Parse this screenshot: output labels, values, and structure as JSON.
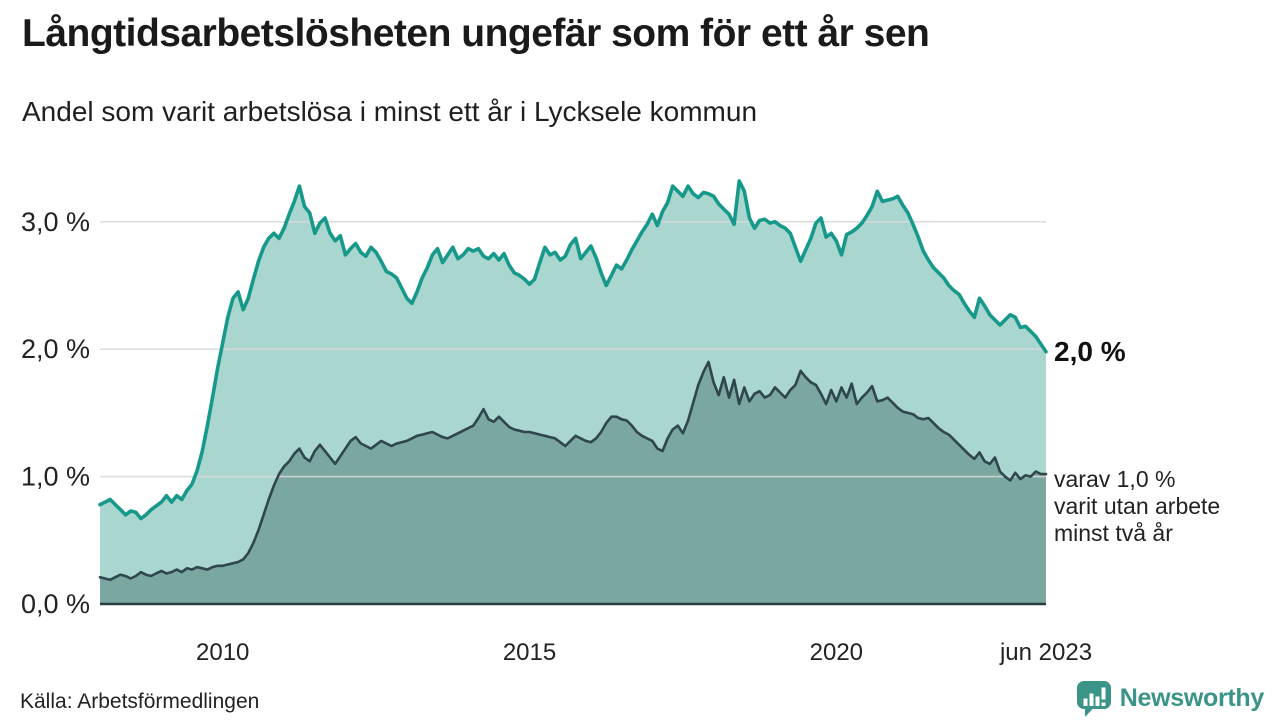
{
  "chart_data": {
    "type": "area",
    "title": "Långtidsarbetslösheten ungefär som för ett år sen",
    "subtitle": "Andel som varit arbetslösa i minst ett år i Lycksele kommun",
    "x_start": "2008-01",
    "x_end": "2023-06",
    "frequency": "monthly",
    "x_tick_labels": [
      "2010",
      "2015",
      "2020",
      "jun 2023"
    ],
    "x_tick_months": [
      24,
      84,
      144,
      185
    ],
    "y_tick_labels": [
      "0,0 %",
      "1,0 %",
      "2,0 %",
      "3,0 %"
    ],
    "y_tick_values": [
      0,
      1,
      2,
      3
    ],
    "ylim": [
      0,
      3.45
    ],
    "grid": "horizontal",
    "legend_position": "right-end-of-line",
    "series": [
      {
        "name": "Andel som varit arbetslösa minst ett år",
        "line_color": "#16998b",
        "fill_color": "#a9d6cf",
        "end_value_label": "2,0 %",
        "values": [
          0.78,
          0.8,
          0.82,
          0.78,
          0.74,
          0.7,
          0.73,
          0.72,
          0.67,
          0.7,
          0.74,
          0.77,
          0.8,
          0.85,
          0.8,
          0.85,
          0.82,
          0.89,
          0.94,
          1.05,
          1.2,
          1.4,
          1.62,
          1.85,
          2.05,
          2.25,
          2.4,
          2.45,
          2.31,
          2.4,
          2.55,
          2.69,
          2.8,
          2.87,
          2.91,
          2.87,
          2.95,
          3.06,
          3.16,
          3.28,
          3.12,
          3.07,
          2.91,
          2.99,
          3.03,
          2.91,
          2.85,
          2.89,
          2.74,
          2.79,
          2.83,
          2.76,
          2.73,
          2.8,
          2.76,
          2.69,
          2.61,
          2.59,
          2.56,
          2.48,
          2.4,
          2.36,
          2.45,
          2.56,
          2.64,
          2.74,
          2.79,
          2.68,
          2.74,
          2.8,
          2.71,
          2.74,
          2.79,
          2.77,
          2.79,
          2.73,
          2.71,
          2.75,
          2.7,
          2.75,
          2.66,
          2.6,
          2.58,
          2.55,
          2.51,
          2.55,
          2.68,
          2.8,
          2.74,
          2.76,
          2.7,
          2.73,
          2.82,
          2.87,
          2.71,
          2.76,
          2.81,
          2.72,
          2.6,
          2.5,
          2.58,
          2.66,
          2.63,
          2.7,
          2.78,
          2.85,
          2.92,
          2.98,
          3.06,
          2.97,
          3.08,
          3.15,
          3.28,
          3.24,
          3.2,
          3.28,
          3.22,
          3.19,
          3.23,
          3.22,
          3.2,
          3.14,
          3.1,
          3.06,
          2.98,
          3.32,
          3.24,
          3.03,
          2.95,
          3.01,
          3.02,
          2.99,
          3.0,
          2.97,
          2.95,
          2.91,
          2.8,
          2.69,
          2.78,
          2.87,
          2.99,
          3.03,
          2.88,
          2.91,
          2.85,
          2.74,
          2.9,
          2.92,
          2.95,
          2.99,
          3.05,
          3.12,
          3.24,
          3.16,
          3.17,
          3.18,
          3.2,
          3.13,
          3.07,
          2.98,
          2.88,
          2.77,
          2.7,
          2.64,
          2.6,
          2.56,
          2.5,
          2.46,
          2.43,
          2.36,
          2.3,
          2.25,
          2.4,
          2.34,
          2.27,
          2.23,
          2.19,
          2.23,
          2.27,
          2.25,
          2.17,
          2.18,
          2.14,
          2.1,
          2.04,
          1.98
        ]
      },
      {
        "name": "varav utan arbete minst två år",
        "line_color": "#2e464c",
        "fill_color": "#7aa7a0",
        "end_value_label": "varav 1,0 % varit utan arbete minst två år",
        "values": [
          0.21,
          0.2,
          0.19,
          0.21,
          0.23,
          0.22,
          0.2,
          0.22,
          0.25,
          0.23,
          0.22,
          0.24,
          0.26,
          0.24,
          0.25,
          0.27,
          0.25,
          0.28,
          0.27,
          0.29,
          0.28,
          0.27,
          0.29,
          0.3,
          0.3,
          0.31,
          0.32,
          0.33,
          0.35,
          0.4,
          0.48,
          0.58,
          0.7,
          0.82,
          0.93,
          1.02,
          1.08,
          1.12,
          1.18,
          1.22,
          1.15,
          1.12,
          1.2,
          1.25,
          1.2,
          1.15,
          1.1,
          1.16,
          1.22,
          1.28,
          1.31,
          1.26,
          1.24,
          1.22,
          1.25,
          1.28,
          1.26,
          1.24,
          1.26,
          1.27,
          1.28,
          1.3,
          1.32,
          1.33,
          1.34,
          1.35,
          1.33,
          1.31,
          1.3,
          1.32,
          1.34,
          1.36,
          1.38,
          1.4,
          1.46,
          1.53,
          1.45,
          1.43,
          1.47,
          1.43,
          1.39,
          1.37,
          1.36,
          1.35,
          1.35,
          1.34,
          1.33,
          1.32,
          1.31,
          1.3,
          1.27,
          1.24,
          1.28,
          1.32,
          1.3,
          1.28,
          1.27,
          1.3,
          1.35,
          1.42,
          1.47,
          1.47,
          1.45,
          1.44,
          1.4,
          1.35,
          1.32,
          1.3,
          1.28,
          1.22,
          1.2,
          1.3,
          1.37,
          1.4,
          1.34,
          1.44,
          1.58,
          1.72,
          1.82,
          1.9,
          1.74,
          1.64,
          1.78,
          1.62,
          1.76,
          1.57,
          1.7,
          1.59,
          1.65,
          1.67,
          1.62,
          1.64,
          1.7,
          1.66,
          1.62,
          1.68,
          1.72,
          1.83,
          1.78,
          1.74,
          1.72,
          1.65,
          1.57,
          1.68,
          1.59,
          1.7,
          1.62,
          1.73,
          1.57,
          1.62,
          1.66,
          1.71,
          1.59,
          1.6,
          1.62,
          1.58,
          1.54,
          1.51,
          1.5,
          1.49,
          1.46,
          1.45,
          1.46,
          1.42,
          1.38,
          1.35,
          1.33,
          1.29,
          1.25,
          1.21,
          1.17,
          1.14,
          1.19,
          1.12,
          1.1,
          1.15,
          1.04,
          1.0,
          0.97,
          1.03,
          0.98,
          1.01,
          1.0,
          1.04,
          1.02,
          1.02
        ]
      }
    ],
    "annotations": {
      "primary": "2,0 %",
      "secondary_lines": [
        "varav 1,0 %",
        "varit utan arbete",
        "minst två år"
      ]
    }
  },
  "footer": {
    "source": "Källa: Arbetsförmedlingen",
    "brand": "Newsworthy"
  },
  "colors": {
    "accent_teal": "#16998b",
    "brand_teal": "#3a9488",
    "light_fill": "#a9d6cf",
    "dark_fill": "#7aa7a0",
    "dark_line": "#2e464c",
    "gridline": "#d9d9d9",
    "axis": "#2b3c40",
    "text": "#1a1a1a",
    "tick_text": "#222222"
  }
}
